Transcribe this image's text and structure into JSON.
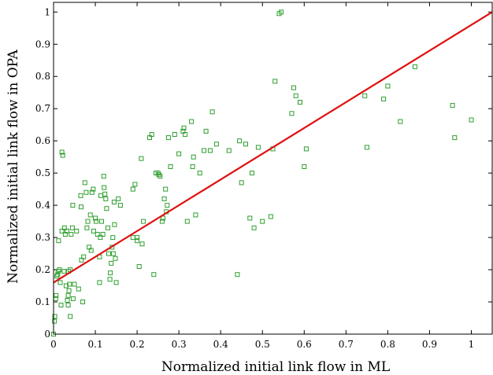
{
  "chart_data": {
    "type": "scatter",
    "xlabel": "Normalized initial link flow in ML",
    "ylabel": "Normalized initial link flow in OPA",
    "xlim": [
      0,
      1.05
    ],
    "ylim": [
      0,
      1.03
    ],
    "grid": false,
    "xticks": [
      "0",
      "0.1",
      "0.2",
      "0.3",
      "0.4",
      "0.5",
      "0.6",
      "0.7",
      "0.8",
      "0.9",
      "1"
    ],
    "yticks": [
      "0",
      "0.1",
      "0.2",
      "0.3",
      "0.4",
      "0.5",
      "0.6",
      "0.7",
      "0.8",
      "0.9",
      "1"
    ],
    "colors": {
      "points": "#2e9e2e",
      "fit_line": "#e01010"
    },
    "series": [
      {
        "type": "scatter",
        "points": [
          [
            0.0,
            0.0
          ],
          [
            0.002,
            0.04
          ],
          [
            0.003,
            0.055
          ],
          [
            0.005,
            0.11
          ],
          [
            0.006,
            0.12
          ],
          [
            0.008,
            0.18
          ],
          [
            0.01,
            0.185
          ],
          [
            0.011,
            0.195
          ],
          [
            0.012,
            0.29
          ],
          [
            0.014,
            0.2
          ],
          [
            0.016,
            0.16
          ],
          [
            0.018,
            0.09
          ],
          [
            0.02,
            0.32
          ],
          [
            0.02,
            0.565
          ],
          [
            0.022,
            0.555
          ],
          [
            0.025,
            0.195
          ],
          [
            0.026,
            0.33
          ],
          [
            0.028,
            0.31
          ],
          [
            0.03,
            0.15
          ],
          [
            0.032,
            0.32
          ],
          [
            0.033,
            0.105
          ],
          [
            0.035,
            0.12
          ],
          [
            0.035,
            0.09
          ],
          [
            0.036,
            0.195
          ],
          [
            0.037,
            0.135
          ],
          [
            0.038,
            0.155
          ],
          [
            0.04,
            0.2
          ],
          [
            0.04,
            0.055
          ],
          [
            0.042,
            0.31
          ],
          [
            0.045,
            0.33
          ],
          [
            0.046,
            0.4
          ],
          [
            0.047,
            0.11
          ],
          [
            0.05,
            0.155
          ],
          [
            0.055,
            0.32
          ],
          [
            0.06,
            0.14
          ],
          [
            0.065,
            0.43
          ],
          [
            0.066,
            0.395
          ],
          [
            0.067,
            0.23
          ],
          [
            0.07,
            0.1
          ],
          [
            0.072,
            0.24
          ],
          [
            0.075,
            0.47
          ],
          [
            0.078,
            0.44
          ],
          [
            0.08,
            0.33
          ],
          [
            0.082,
            0.35
          ],
          [
            0.085,
            0.27
          ],
          [
            0.088,
            0.37
          ],
          [
            0.09,
            0.26
          ],
          [
            0.092,
            0.44
          ],
          [
            0.095,
            0.45
          ],
          [
            0.096,
            0.32
          ],
          [
            0.1,
            0.36
          ],
          [
            0.102,
            0.35
          ],
          [
            0.105,
            0.31
          ],
          [
            0.11,
            0.16
          ],
          [
            0.11,
            0.24
          ],
          [
            0.112,
            0.3
          ],
          [
            0.113,
            0.43
          ],
          [
            0.115,
            0.35
          ],
          [
            0.118,
            0.31
          ],
          [
            0.12,
            0.49
          ],
          [
            0.121,
            0.455
          ],
          [
            0.123,
            0.435
          ],
          [
            0.125,
            0.42
          ],
          [
            0.127,
            0.39
          ],
          [
            0.13,
            0.33
          ],
          [
            0.132,
            0.25
          ],
          [
            0.135,
            0.17
          ],
          [
            0.136,
            0.19
          ],
          [
            0.138,
            0.22
          ],
          [
            0.14,
            0.27
          ],
          [
            0.142,
            0.3
          ],
          [
            0.143,
            0.25
          ],
          [
            0.145,
            0.41
          ],
          [
            0.146,
            0.34
          ],
          [
            0.148,
            0.235
          ],
          [
            0.15,
            0.16
          ],
          [
            0.155,
            0.42
          ],
          [
            0.16,
            0.4
          ],
          [
            0.19,
            0.45
          ],
          [
            0.19,
            0.3
          ],
          [
            0.195,
            0.465
          ],
          [
            0.2,
            0.3
          ],
          [
            0.2,
            0.29
          ],
          [
            0.205,
            0.21
          ],
          [
            0.21,
            0.545
          ],
          [
            0.212,
            0.28
          ],
          [
            0.215,
            0.35
          ],
          [
            0.23,
            0.61
          ],
          [
            0.235,
            0.62
          ],
          [
            0.24,
            0.185
          ],
          [
            0.245,
            0.5
          ],
          [
            0.25,
            0.5
          ],
          [
            0.252,
            0.495
          ],
          [
            0.255,
            0.49
          ],
          [
            0.26,
            0.35
          ],
          [
            0.262,
            0.36
          ],
          [
            0.265,
            0.42
          ],
          [
            0.268,
            0.45
          ],
          [
            0.27,
            0.38
          ],
          [
            0.272,
            0.4
          ],
          [
            0.275,
            0.61
          ],
          [
            0.28,
            0.52
          ],
          [
            0.29,
            0.62
          ],
          [
            0.3,
            0.56
          ],
          [
            0.31,
            0.63
          ],
          [
            0.312,
            0.64
          ],
          [
            0.315,
            0.62
          ],
          [
            0.32,
            0.35
          ],
          [
            0.33,
            0.66
          ],
          [
            0.333,
            0.52
          ],
          [
            0.335,
            0.55
          ],
          [
            0.34,
            0.37
          ],
          [
            0.35,
            0.5
          ],
          [
            0.36,
            0.57
          ],
          [
            0.365,
            0.63
          ],
          [
            0.375,
            0.57
          ],
          [
            0.38,
            0.69
          ],
          [
            0.39,
            0.59
          ],
          [
            0.42,
            0.57
          ],
          [
            0.44,
            0.185
          ],
          [
            0.445,
            0.6
          ],
          [
            0.45,
            0.47
          ],
          [
            0.46,
            0.59
          ],
          [
            0.47,
            0.36
          ],
          [
            0.475,
            0.5
          ],
          [
            0.48,
            0.33
          ],
          [
            0.49,
            0.58
          ],
          [
            0.5,
            0.35
          ],
          [
            0.52,
            0.365
          ],
          [
            0.525,
            0.575
          ],
          [
            0.53,
            0.785
          ],
          [
            0.54,
            0.995
          ],
          [
            0.545,
            1.0
          ],
          [
            0.57,
            0.685
          ],
          [
            0.575,
            0.765
          ],
          [
            0.58,
            0.74
          ],
          [
            0.59,
            0.72
          ],
          [
            0.6,
            0.52
          ],
          [
            0.605,
            0.575
          ],
          [
            0.745,
            0.74
          ],
          [
            0.75,
            0.58
          ],
          [
            0.79,
            0.73
          ],
          [
            0.8,
            0.77
          ],
          [
            0.83,
            0.66
          ],
          [
            0.865,
            0.83
          ],
          [
            0.955,
            0.71
          ],
          [
            0.96,
            0.61
          ],
          [
            1.0,
            0.665
          ]
        ]
      },
      {
        "type": "line",
        "points": [
          [
            0.0,
            0.16
          ],
          [
            1.05,
            1.0
          ]
        ]
      }
    ]
  }
}
